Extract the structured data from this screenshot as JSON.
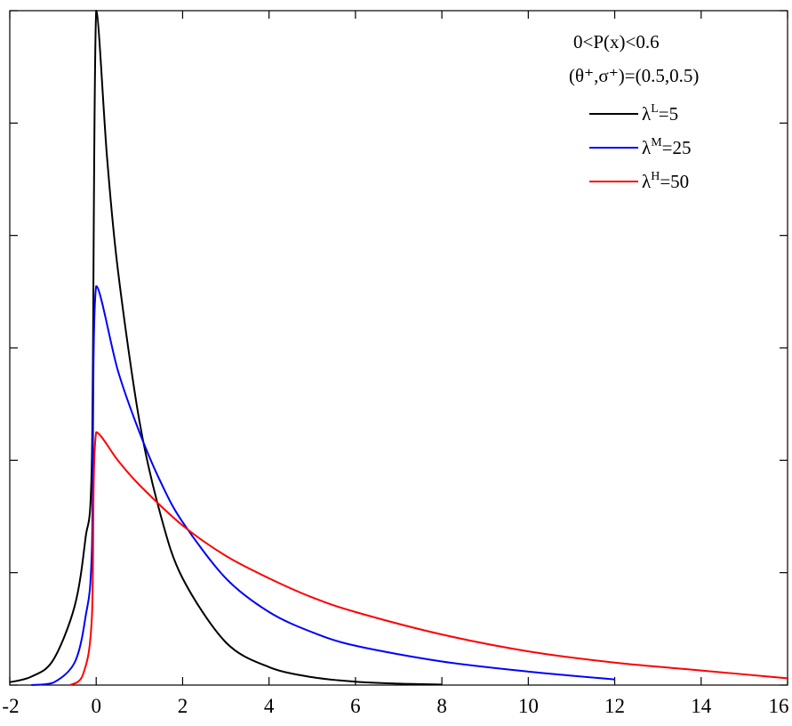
{
  "chart_data": {
    "type": "line",
    "title": "",
    "xlabel": "",
    "ylabel": "",
    "xlim": [
      -2,
      16
    ],
    "ylim": [
      0,
      0.6
    ],
    "grid": false,
    "legend_placement": "top-right",
    "x_ticks": [
      -2,
      0,
      2,
      4,
      6,
      8,
      10,
      12,
      14,
      16
    ],
    "x_tick_labels": [
      "-2",
      "0",
      "2",
      "4",
      "6",
      "8",
      "10",
      "12",
      "14",
      "16"
    ],
    "y_ticks": [
      0,
      0.1,
      0.2,
      0.3,
      0.4,
      0.5,
      0.6
    ],
    "y_tick_labels": [],
    "legend": {
      "text1": "0<P(x)<0.6",
      "text2": "(θ⁺,σ⁺)=(0.5,0.5)"
    },
    "series": [
      {
        "name": "λ^L=5",
        "legend_base": "λ",
        "legend_sup": "L",
        "legend_value": "=5",
        "color": "#000000",
        "x": [
          -2.0,
          -1.5,
          -1.0,
          -0.5,
          -0.25,
          -0.1,
          0.0,
          0.25,
          0.5,
          1.0,
          1.5,
          2.0,
          3.0,
          4.0,
          5.0,
          6.0,
          7.0,
          8.0
        ],
        "y": [
          0.0025,
          0.0075,
          0.022,
          0.07,
          0.13,
          0.2,
          0.6,
          0.47,
          0.37,
          0.235,
          0.15,
          0.095,
          0.038,
          0.016,
          0.007,
          0.003,
          0.0013,
          0.0005
        ]
      },
      {
        "name": "λ^M=25",
        "legend_base": "λ",
        "legend_sup": "M",
        "legend_value": "=25",
        "color": "#0000ff",
        "x": [
          -1.5,
          -1.0,
          -0.5,
          -0.25,
          -0.1,
          0.0,
          0.5,
          1.0,
          1.5,
          2.0,
          3.0,
          4.0,
          5.0,
          6.0,
          8.0,
          10.0,
          12.0
        ],
        "y": [
          0.0,
          0.002,
          0.02,
          0.06,
          0.12,
          0.355,
          0.28,
          0.225,
          0.18,
          0.145,
          0.095,
          0.065,
          0.047,
          0.035,
          0.021,
          0.012,
          0.005
        ]
      },
      {
        "name": "λ^H=50",
        "legend_base": "λ",
        "legend_sup": "H",
        "legend_value": "=50",
        "color": "#ff0000",
        "x": [
          -0.6,
          -0.3,
          -0.1,
          0.0,
          0.5,
          1.0,
          2.0,
          3.0,
          4.0,
          5.0,
          6.0,
          8.0,
          10.0,
          12.0,
          14.0,
          16.0
        ],
        "y": [
          0.0,
          0.01,
          0.06,
          0.225,
          0.2,
          0.178,
          0.142,
          0.115,
          0.095,
          0.078,
          0.065,
          0.045,
          0.03,
          0.02,
          0.013,
          0.006
        ]
      }
    ]
  }
}
